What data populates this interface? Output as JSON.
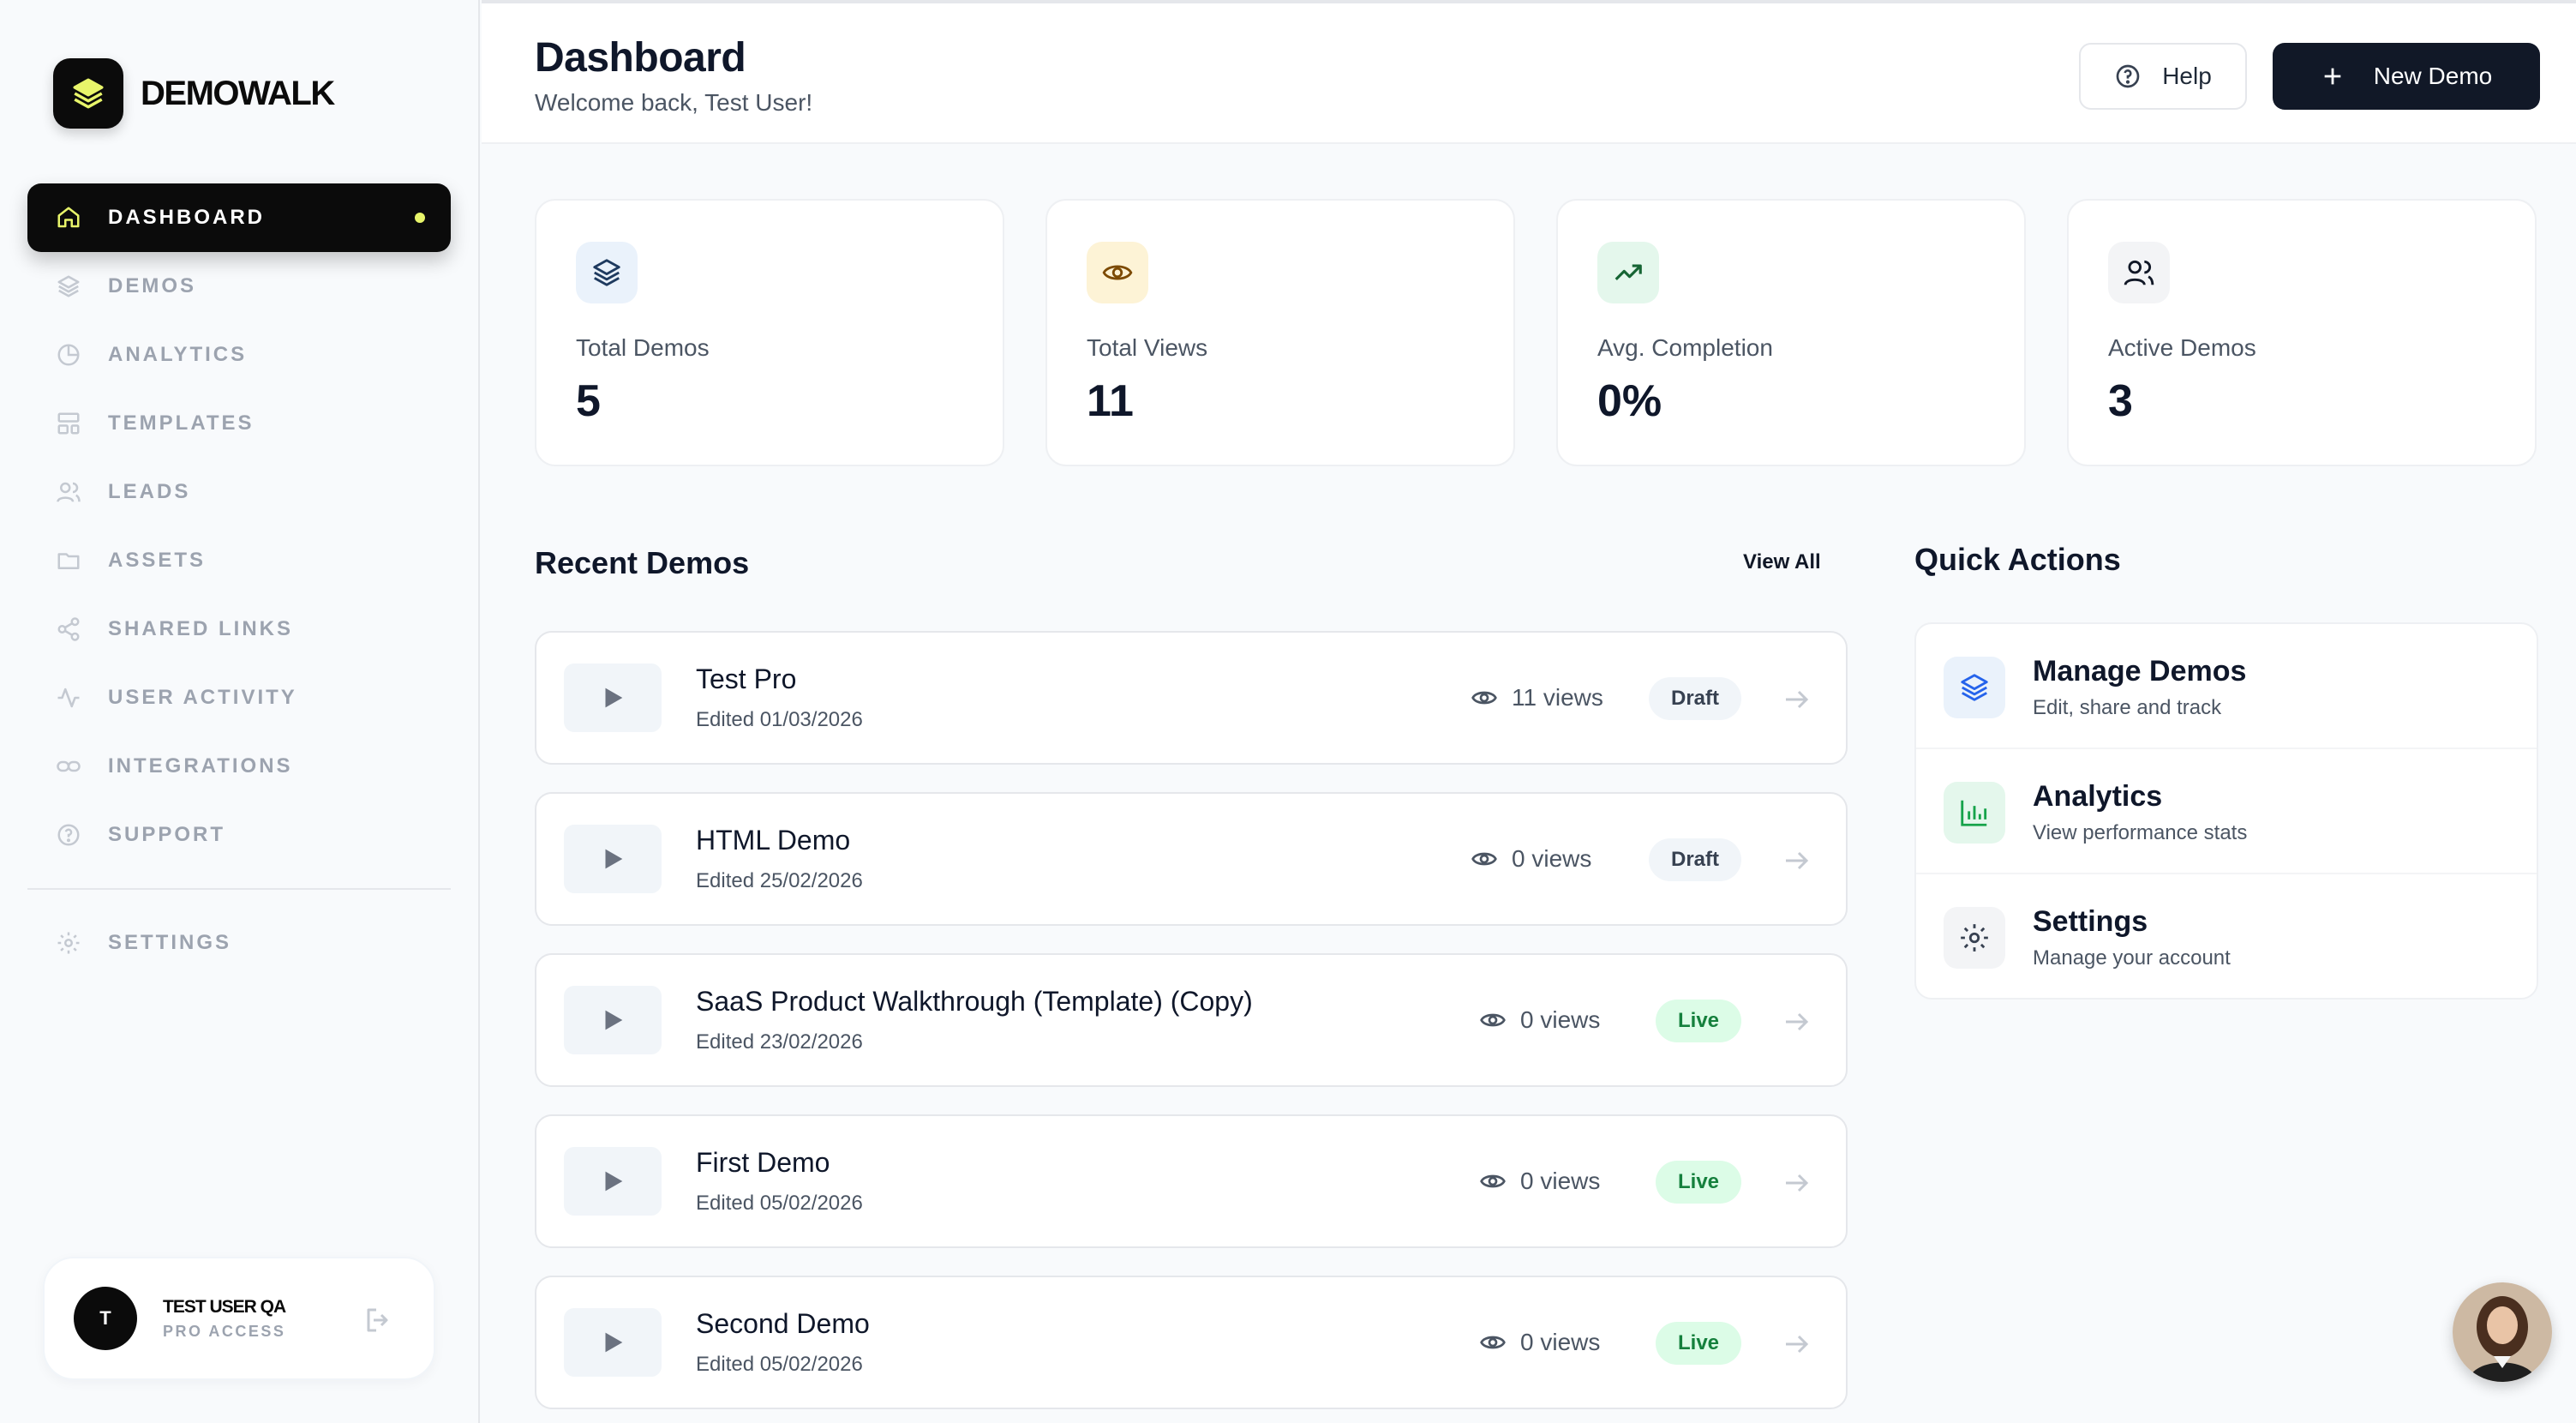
{
  "brand": {
    "name": "DEMOWALK"
  },
  "sidebar": {
    "items": [
      {
        "label": "DASHBOARD",
        "icon": "home-icon",
        "active": true
      },
      {
        "label": "DEMOS",
        "icon": "layers-icon"
      },
      {
        "label": "ANALYTICS",
        "icon": "pie-chart-icon"
      },
      {
        "label": "TEMPLATES",
        "icon": "layout-icon"
      },
      {
        "label": "LEADS",
        "icon": "users-icon"
      },
      {
        "label": "ASSETS",
        "icon": "folder-icon"
      },
      {
        "label": "SHARED LINKS",
        "icon": "share-icon"
      },
      {
        "label": "USER ACTIVITY",
        "icon": "activity-icon"
      },
      {
        "label": "INTEGRATIONS",
        "icon": "link-icon"
      },
      {
        "label": "SUPPORT",
        "icon": "help-circle-icon"
      }
    ],
    "settings": {
      "label": "SETTINGS",
      "icon": "gear-icon"
    },
    "user": {
      "initial": "T",
      "name": "TEST USER QA",
      "plan": "PRO ACCESS"
    }
  },
  "header": {
    "title": "Dashboard",
    "subtitle": "Welcome back, Test User!",
    "help_label": "Help",
    "new_label": "New Demo"
  },
  "stats": [
    {
      "label": "Total Demos",
      "value": "5",
      "icon": "layers-icon",
      "icon_bg": "#eaf2fb",
      "icon_color": "#1e3a5f"
    },
    {
      "label": "Total Views",
      "value": "11",
      "icon": "eye-icon",
      "icon_bg": "#fdf3d6",
      "icon_color": "#7c4a03"
    },
    {
      "label": "Avg. Completion",
      "value": "0%",
      "icon": "trending-up-icon",
      "icon_bg": "#e4f7ec",
      "icon_color": "#166534"
    },
    {
      "label": "Active Demos",
      "value": "3",
      "icon": "users-icon",
      "icon_bg": "#f3f4f6",
      "icon_color": "#111827"
    }
  ],
  "recent": {
    "title": "Recent Demos",
    "view_all": "View All",
    "demos": [
      {
        "title": "Test Pro",
        "edited": "Edited 01/03/2026",
        "views": "11 views",
        "status": "Draft"
      },
      {
        "title": "HTML Demo",
        "edited": "Edited 25/02/2026",
        "views": "0 views",
        "status": "Draft"
      },
      {
        "title": "SaaS Product Walkthrough (Template) (Copy)",
        "edited": "Edited 23/02/2026",
        "views": "0 views",
        "status": "Live"
      },
      {
        "title": "First Demo",
        "edited": "Edited 05/02/2026",
        "views": "0 views",
        "status": "Live"
      },
      {
        "title": "Second Demo",
        "edited": "Edited 05/02/2026",
        "views": "0 views",
        "status": "Live"
      }
    ]
  },
  "quick_actions": {
    "title": "Quick Actions",
    "items": [
      {
        "title": "Manage Demos",
        "sub": "Edit, share and track",
        "icon": "layers-icon"
      },
      {
        "title": "Analytics",
        "sub": "View performance stats",
        "icon": "bar-chart-icon"
      },
      {
        "title": "Settings",
        "sub": "Manage your account",
        "icon": "gear-icon"
      }
    ]
  },
  "colors": {
    "accent": "#111827",
    "live_bg": "#dcfce7",
    "live_text": "#15803d",
    "draft_bg": "#f1f5f9"
  }
}
